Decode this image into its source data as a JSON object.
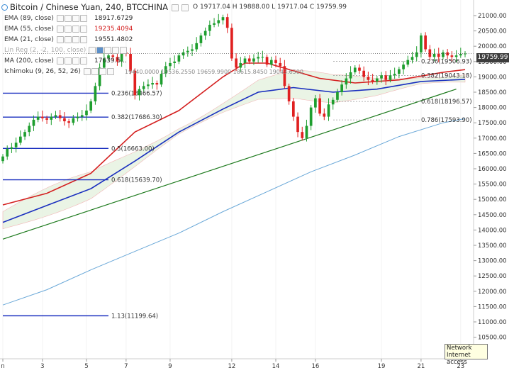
{
  "title": {
    "symbol": "Bitcoin / Chinese Yuan, 240, BTCCHINA",
    "ohlc_text": "O 19717.04  H 19888.00  L 19717.04  C 19759.99"
  },
  "indicators": [
    {
      "label": "EMA (89, close)",
      "value": "18917.6729",
      "color": "#2b2b2b"
    },
    {
      "label": "EMA (55, close)",
      "value": "19235.4094",
      "color": "#d41f1f"
    },
    {
      "label": "EMA (21, close)",
      "value": "19551.4802",
      "color": "#2b2b2b"
    },
    {
      "label": "Lin Reg (2, -2, 100, close)",
      "value": "",
      "color": "#aaaaaa"
    },
    {
      "label": "MA (200, close)",
      "value": "17639.5...",
      "color": "#2b2b2b"
    },
    {
      "label": "Ichimoku (9, 26, 52, 26)",
      "value": "",
      "color": "#2b2b2b"
    }
  ],
  "ichimoku_values_text": "19440.0000  19536.2550  19659.9900  18615.8450  19043.6500",
  "last_price": "19759.99",
  "tooltip": {
    "line1": "Network",
    "line2": "Internet access"
  },
  "chart_data": {
    "type": "candlestick",
    "y_axis": {
      "min": 10500,
      "max": 21500,
      "step": 500,
      "tick_format_decimals": 2
    },
    "x_ticks": [
      {
        "label": "n",
        "bar": 0
      },
      {
        "label": "3",
        "bar": 9
      },
      {
        "label": "5",
        "bar": 19
      },
      {
        "label": "7",
        "bar": 28
      },
      {
        "label": "9",
        "bar": 38
      },
      {
        "label": "12",
        "bar": 52
      },
      {
        "label": "14",
        "bar": 62
      },
      {
        "label": "16",
        "bar": 71
      },
      {
        "label": "19",
        "bar": 86
      },
      {
        "label": "21",
        "bar": 95
      },
      {
        "label": "23",
        "bar": 104
      }
    ],
    "bar_count": 106,
    "candle_closes": [
      16400,
      16650,
      16700,
      16850,
      17050,
      17200,
      17400,
      17600,
      17700,
      17650,
      17600,
      17700,
      17750,
      17650,
      17550,
      17500,
      17650,
      17700,
      17750,
      17900,
      18200,
      18700,
      19300,
      19600,
      19700,
      19650,
      19500,
      19800,
      19750,
      19200,
      18400,
      18600,
      18700,
      18750,
      18800,
      18750,
      19100,
      19350,
      19450,
      19500,
      19700,
      19800,
      19850,
      19900,
      20100,
      20350,
      20500,
      20700,
      20750,
      20850,
      20950,
      20600,
      19600,
      19300,
      19450,
      19600,
      19500,
      19600,
      19650,
      19650,
      19400,
      19550,
      19450,
      19350,
      18700,
      18200,
      17700,
      17200,
      17000,
      17400,
      18000,
      18300,
      17800,
      17700,
      18100,
      18250,
      18500,
      18750,
      18950,
      19150,
      19300,
      19200,
      19000,
      18900,
      18850,
      18950,
      19050,
      18900,
      19050,
      19100,
      19250,
      19400,
      19550,
      19650,
      19800,
      20350,
      19900,
      19650,
      19750,
      19650,
      19800,
      19700,
      19650,
      19700,
      19750,
      19760
    ],
    "fib_levels": [
      {
        "ratio": "0.236",
        "value": 18466.57,
        "text": "0.236(18466.57)"
      },
      {
        "ratio": "0.382",
        "value": 17686.3,
        "text": "0.382(17686.30)"
      },
      {
        "ratio": "0.5",
        "value": 16663.0,
        "text": "0.5(16663.00)"
      },
      {
        "ratio": "0.618",
        "value": 15639.7,
        "text": "0.618(15639.70)"
      },
      {
        "ratio": "1.13",
        "value": 11199.64,
        "text": "1.13(11199.64)"
      }
    ],
    "fib_levels_right": [
      {
        "ratio": "0.236",
        "value": 19506.93,
        "text": "0.236(19506.93)"
      },
      {
        "ratio": "0.382",
        "value": 19043.18,
        "text": "0.382(19043.18)"
      },
      {
        "ratio": "0.618",
        "value": 18196.57,
        "text": "0.618(18196.57)"
      },
      {
        "ratio": "0.786",
        "value": 17593.9,
        "text": "0.786(17593.90)"
      }
    ],
    "trendline": {
      "from": {
        "bar": 0,
        "price": 13700
      },
      "to": {
        "bar": 103,
        "price": 18600
      },
      "color": "#1d7a1d"
    },
    "ema55": {
      "color": "#d41f1f",
      "points": [
        [
          0,
          14820
        ],
        [
          10,
          15200
        ],
        [
          20,
          15850
        ],
        [
          30,
          17200
        ],
        [
          40,
          17900
        ],
        [
          50,
          19000
        ],
        [
          55,
          19450
        ],
        [
          60,
          19450
        ],
        [
          66,
          19200
        ],
        [
          72,
          18950
        ],
        [
          80,
          18800
        ],
        [
          90,
          18900
        ],
        [
          100,
          19150
        ],
        [
          105,
          19235
        ]
      ]
    },
    "ema89": {
      "color": "#1a2fbf",
      "points": [
        [
          0,
          14250
        ],
        [
          10,
          14800
        ],
        [
          20,
          15350
        ],
        [
          30,
          16250
        ],
        [
          40,
          17200
        ],
        [
          50,
          17950
        ],
        [
          58,
          18500
        ],
        [
          66,
          18650
        ],
        [
          75,
          18500
        ],
        [
          85,
          18600
        ],
        [
          95,
          18850
        ],
        [
          105,
          18918
        ]
      ]
    },
    "ma200": {
      "color": "#6aa8d8",
      "points": [
        [
          0,
          11550
        ],
        [
          10,
          12050
        ],
        [
          20,
          12700
        ],
        [
          30,
          13300
        ],
        [
          40,
          13900
        ],
        [
          50,
          14600
        ],
        [
          60,
          15250
        ],
        [
          70,
          15900
        ],
        [
          80,
          16450
        ],
        [
          90,
          17050
        ],
        [
          100,
          17500
        ],
        [
          105,
          17640
        ]
      ]
    }
  }
}
